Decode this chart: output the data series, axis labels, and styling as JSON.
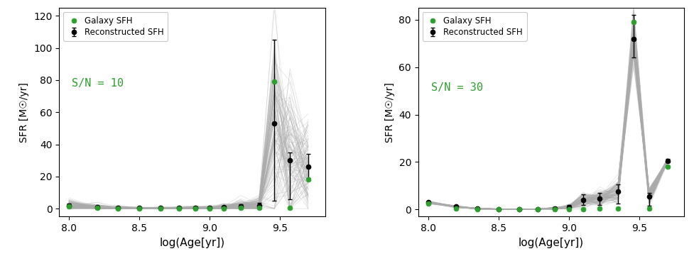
{
  "panel1": {
    "xlabel": "log(Age[yr])",
    "ylabel": "SFR [M☉/yr]",
    "ylim": [
      -5,
      125
    ],
    "xlim": [
      7.93,
      9.82
    ],
    "yticks": [
      0,
      20,
      40,
      60,
      80,
      100,
      120
    ],
    "xticks": [
      8.0,
      8.5,
      9.0,
      9.5
    ],
    "galaxy_x": [
      8.0,
      8.2,
      8.35,
      8.5,
      8.65,
      8.78,
      8.9,
      9.0,
      9.1,
      9.22,
      9.35,
      9.46,
      9.57,
      9.7
    ],
    "galaxy_y": [
      1.5,
      0.3,
      0.1,
      0.1,
      0.1,
      0.1,
      0.1,
      0.1,
      0.1,
      0.5,
      0.5,
      79.0,
      0.5,
      18.0
    ],
    "recon_x": [
      8.0,
      8.2,
      8.35,
      8.5,
      8.65,
      8.78,
      8.9,
      9.0,
      9.1,
      9.22,
      9.35,
      9.46,
      9.57,
      9.7
    ],
    "recon_y": [
      2.0,
      0.8,
      0.5,
      0.3,
      0.3,
      0.3,
      0.4,
      0.5,
      0.8,
      1.5,
      2.0,
      53.0,
      30.0,
      26.0
    ],
    "recon_yerr_lo": [
      1.0,
      0.6,
      0.4,
      0.2,
      0.2,
      0.2,
      0.3,
      0.4,
      0.6,
      1.0,
      1.5,
      48.0,
      24.0,
      7.0
    ],
    "recon_yerr_hi": [
      1.0,
      0.6,
      0.4,
      0.2,
      0.2,
      0.2,
      0.3,
      0.4,
      0.6,
      1.0,
      1.5,
      52.0,
      5.0,
      8.0
    ],
    "sn_label": "S/N = 10",
    "sn_x": 8.02,
    "sn_y": 76,
    "walker_peak_idx": 11,
    "walker_spread": 1.8
  },
  "panel2": {
    "xlabel": "log(Age[yr])",
    "ylabel": "SFR [M☉/yr]",
    "ylim": [
      -3,
      85
    ],
    "xlim": [
      7.93,
      9.82
    ],
    "yticks": [
      0,
      20,
      40,
      60,
      80
    ],
    "xticks": [
      8.0,
      8.5,
      9.0,
      9.5
    ],
    "galaxy_x": [
      8.0,
      8.2,
      8.35,
      8.5,
      8.65,
      8.78,
      8.9,
      9.0,
      9.1,
      9.22,
      9.35,
      9.46,
      9.57,
      9.7
    ],
    "galaxy_y": [
      2.5,
      0.3,
      0.1,
      0.05,
      0.05,
      0.05,
      0.1,
      0.1,
      0.2,
      0.3,
      0.5,
      79.0,
      0.5,
      18.0
    ],
    "recon_x": [
      8.0,
      8.2,
      8.35,
      8.5,
      8.65,
      8.78,
      8.9,
      9.0,
      9.1,
      9.22,
      9.35,
      9.46,
      9.57,
      9.7
    ],
    "recon_y": [
      3.0,
      1.2,
      0.4,
      0.2,
      0.2,
      0.2,
      0.5,
      1.0,
      4.0,
      4.5,
      7.5,
      72.0,
      5.5,
      20.5
    ],
    "recon_yerr_lo": [
      0.4,
      0.3,
      0.2,
      0.1,
      0.1,
      0.1,
      0.3,
      0.5,
      2.0,
      2.5,
      5.0,
      8.0,
      4.0,
      0.8
    ],
    "recon_yerr_hi": [
      0.4,
      0.3,
      0.2,
      0.1,
      0.1,
      0.1,
      0.4,
      0.8,
      2.5,
      2.5,
      3.0,
      10.0,
      1.5,
      0.8
    ],
    "sn_label": "S/N = 30",
    "sn_x": 8.02,
    "sn_y": 50,
    "walker_peak_idx": 11,
    "walker_spread": 0.7
  },
  "walker_color": "#aaaaaa",
  "galaxy_color": "#2ca02c",
  "recon_color": "#000000",
  "legend_galaxy": "Galaxy SFH",
  "legend_recon": "Reconstructed SFH",
  "n_walkers": 120
}
